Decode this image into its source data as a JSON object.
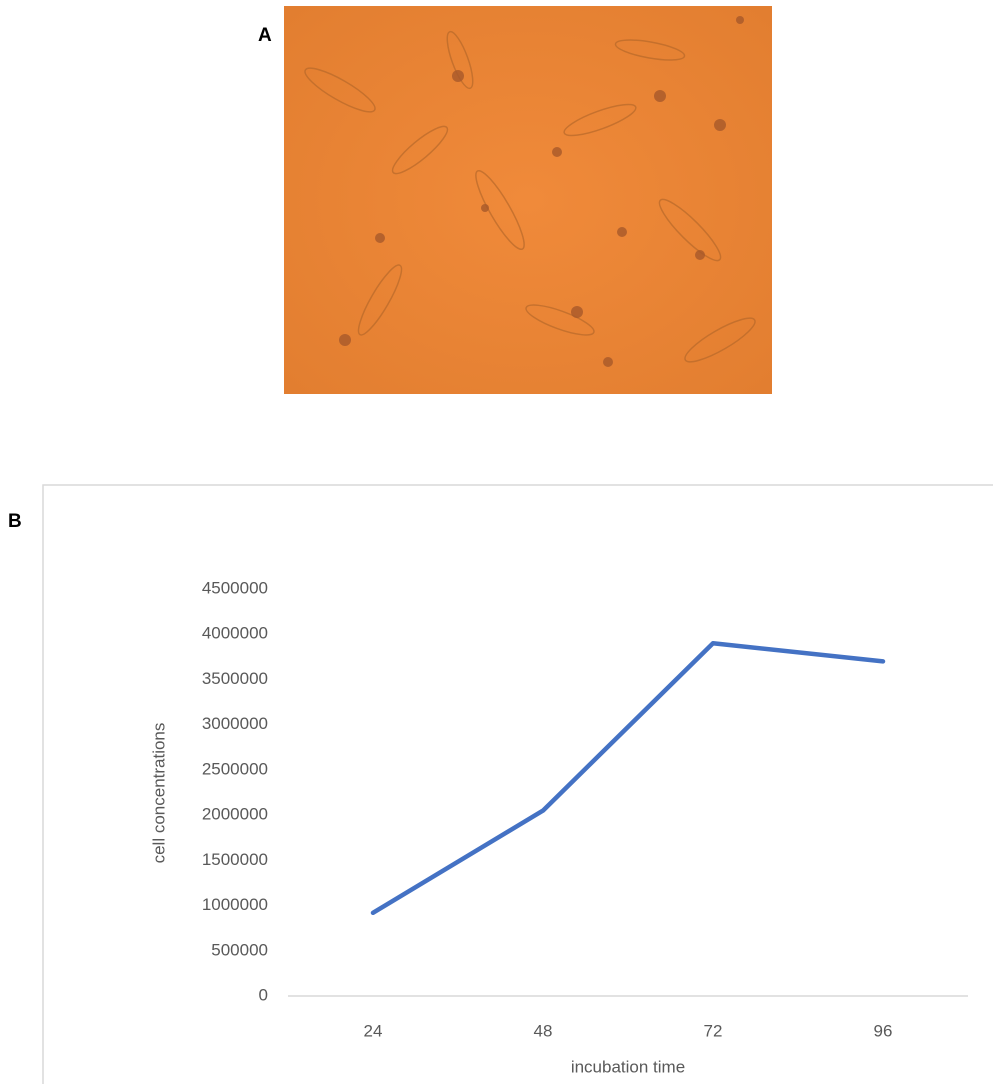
{
  "panel_labels": [
    "A",
    "B"
  ],
  "chart_data": {
    "type": "line",
    "categories": [
      "24",
      "48",
      "72",
      "96"
    ],
    "series": [
      {
        "name": "cell concentrations",
        "color": "#4472c4",
        "values": [
          920000,
          2050000,
          3900000,
          3700000
        ]
      }
    ],
    "xlabel": "incubation time",
    "ylabel": "cell concentrations",
    "ylim": [
      0,
      4500000
    ],
    "yticks": [
      0,
      500000,
      1000000,
      1500000,
      2000000,
      2500000,
      3000000,
      3500000,
      4000000,
      4500000
    ],
    "grid": false
  }
}
